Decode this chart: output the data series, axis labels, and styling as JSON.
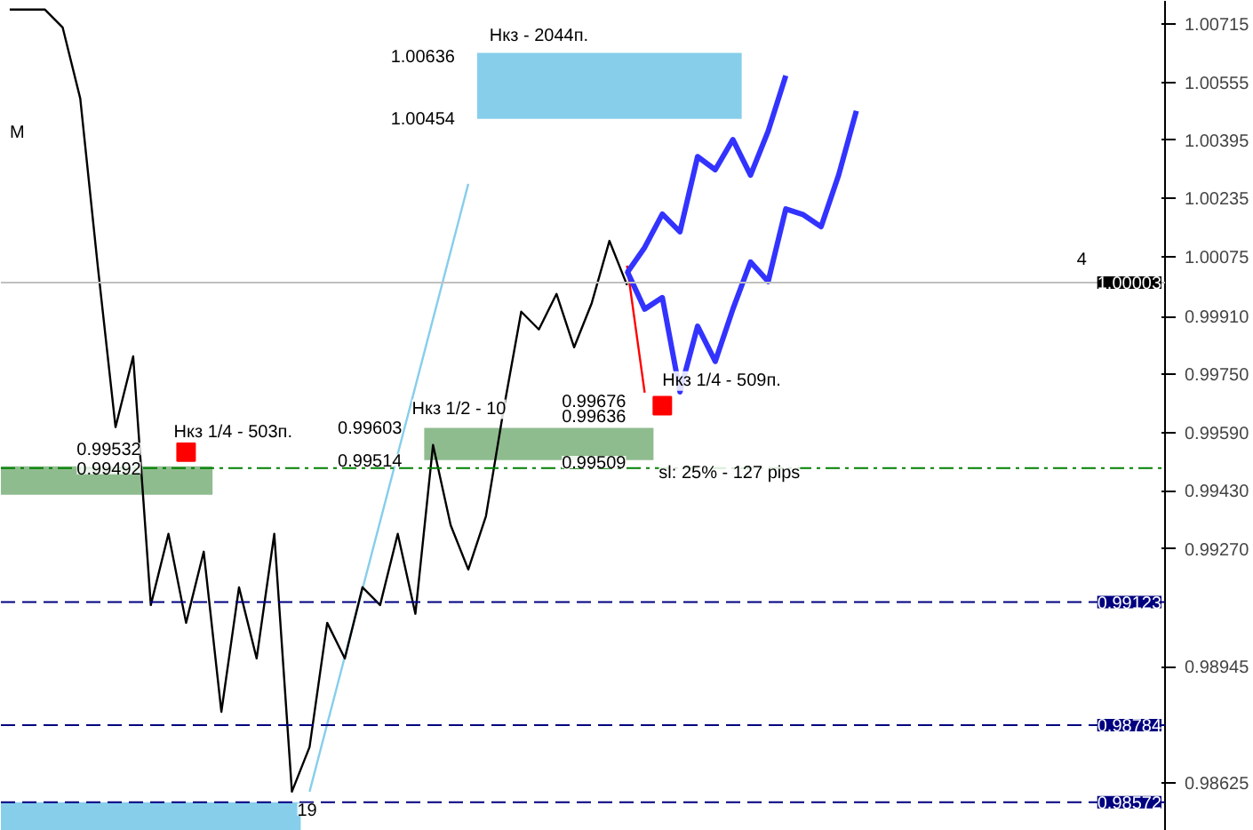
{
  "chart_data": {
    "type": "line",
    "ylim": [
      0.98493,
      1.00779
    ],
    "categories": [
      null,
      null,
      null,
      null,
      null,
      null,
      null,
      null,
      null,
      null,
      null,
      null,
      null,
      null,
      null,
      null,
      null,
      null,
      null,
      null,
      null,
      null,
      null,
      null,
      null,
      null,
      null,
      null,
      null,
      null,
      null,
      null,
      null,
      null,
      null,
      null,
      null,
      null,
      null,
      null,
      null,
      null,
      null,
      null,
      null,
      null,
      null,
      null,
      null,
      null,
      null,
      null,
      null,
      null,
      null,
      null,
      null,
      null,
      null,
      null,
      null,
      null,
      null,
      null,
      null,
      null
    ],
    "yticks": [
      1.00715,
      1.00555,
      1.00395,
      1.00235,
      1.00075,
      {
        "value": 0.9991,
        "label": "0.99910"
      },
      {
        "value": 0.9975,
        "label": "0.99750"
      },
      {
        "value": 0.9959,
        "label": "0.99590"
      },
      {
        "value": 0.9943,
        "label": "0.99430"
      },
      {
        "value": 0.9927,
        "label": "0.99270"
      },
      0.98945,
      0.98625
    ],
    "tick_labels": "y",
    "grid": false,
    "marker": "none",
    "line_style": "solid",
    "series": [
      {
        "color": "#87ceeb",
        "values": [
          null,
          null,
          null,
          null,
          null,
          null,
          null,
          null,
          null,
          null,
          null,
          null,
          null,
          null,
          null,
          null,
          null,
          0.98601,
          0.98787,
          0.98973,
          0.99159,
          0.99345,
          0.99531,
          0.99717,
          0.99903,
          1.00089,
          1.00275,
          null,
          null,
          null,
          null,
          null,
          null,
          null,
          null,
          null,
          null,
          null,
          null,
          null,
          null,
          null,
          null,
          null,
          null,
          null,
          null,
          null,
          null,
          null,
          null,
          null,
          null,
          null,
          null,
          null,
          null,
          null,
          null,
          null,
          null,
          null,
          null,
          null,
          null,
          null
        ]
      },
      {
        "color": "#000000",
        "values": [
          1.00755,
          1.00755,
          1.00755,
          1.00706,
          1.0051,
          1.00045,
          0.99605,
          0.998,
          0.99115,
          0.99311,
          0.99066,
          0.99262,
          0.98821,
          0.99164,
          0.98968,
          0.99311,
          0.98601,
          0.98724,
          0.99066,
          0.98968,
          0.99164,
          0.99115,
          0.99311,
          0.99091,
          0.99556,
          0.99335,
          0.99213,
          0.9936,
          0.99653,
          0.99923,
          0.99874,
          0.99972,
          0.99825,
          0.99947,
          1.00118,
          0.99996,
          null,
          null,
          null,
          null,
          null,
          null,
          null,
          null,
          null,
          null,
          null,
          null,
          null,
          null,
          null,
          null,
          null,
          null,
          null,
          null,
          null,
          null,
          null,
          null,
          null,
          null,
          null,
          null,
          null,
          null
        ]
      },
      {
        "color": "#ff0000",
        "values": [
          null,
          null,
          null,
          null,
          null,
          null,
          null,
          null,
          null,
          null,
          null,
          null,
          null,
          null,
          null,
          null,
          null,
          null,
          null,
          null,
          null,
          null,
          null,
          null,
          null,
          null,
          null,
          null,
          null,
          null,
          null,
          null,
          null,
          null,
          null,
          1.0005,
          0.997,
          null,
          null,
          null,
          null,
          null,
          null,
          null,
          null,
          null,
          null,
          null,
          null,
          null,
          null,
          null,
          null,
          null,
          null,
          null,
          null,
          null,
          null,
          null,
          null,
          null,
          null,
          null,
          null,
          null
        ]
      },
      {
        "color": "#3333ff",
        "values": [
          null,
          null,
          null,
          null,
          null,
          null,
          null,
          null,
          null,
          null,
          null,
          null,
          null,
          null,
          null,
          null,
          null,
          null,
          null,
          null,
          null,
          null,
          null,
          null,
          null,
          null,
          null,
          null,
          null,
          null,
          null,
          null,
          null,
          null,
          null,
          1.0003,
          1.001,
          1.00192,
          1.00143,
          1.0035,
          1.00314,
          1.00397,
          1.00299,
          1.0042,
          1.00573,
          null,
          null,
          null,
          null,
          null,
          null,
          null,
          null,
          null,
          null,
          null,
          null,
          null,
          null,
          null,
          null,
          null,
          null,
          null,
          null,
          null
        ]
      },
      {
        "color": "#3333ff",
        "values": [
          null,
          null,
          null,
          null,
          null,
          null,
          null,
          null,
          null,
          null,
          null,
          null,
          null,
          null,
          null,
          null,
          null,
          null,
          null,
          null,
          null,
          null,
          null,
          null,
          null,
          null,
          null,
          null,
          null,
          null,
          null,
          null,
          null,
          null,
          null,
          1.00035,
          0.9993,
          0.99962,
          0.99702,
          0.99883,
          0.99786,
          0.9993,
          1.0006,
          1.00006,
          1.00206,
          1.0019,
          1.00157,
          1.003,
          1.00476,
          null,
          null,
          null,
          null,
          null,
          null,
          null,
          null,
          null,
          null,
          null,
          null,
          null,
          null,
          null,
          null,
          null
        ]
      },
      {
        "type": "scatter",
        "marker": "square",
        "color": "#ff0000",
        "values": [
          null,
          null,
          null,
          null,
          null,
          null,
          null,
          null,
          null,
          null,
          0.99536,
          null,
          null,
          null,
          null,
          null,
          null,
          null,
          null,
          null,
          null,
          null,
          null,
          null,
          null,
          null,
          null,
          null,
          null,
          null,
          null,
          null,
          null,
          null,
          null,
          null,
          null,
          0.99664,
          null,
          null,
          null,
          null,
          null,
          null,
          null,
          null,
          null,
          null,
          null,
          null,
          null,
          null,
          null,
          null,
          null,
          null,
          null,
          null,
          null,
          null,
          null,
          null,
          null,
          null,
          null,
          null
        ]
      }
    ],
    "bands": [
      {
        "axis": "y",
        "from": 0.98493,
        "to": 0.98572,
        "color": "#87ceeb"
      },
      {
        "axis": "y",
        "from": 0.99419,
        "to": 0.99497,
        "color": "#8fbc8f"
      },
      {
        "axis": "y",
        "from": 0.99514,
        "to": 0.99603,
        "color": "#8fbc8f"
      },
      {
        "axis": "y",
        "from": 1.00454,
        "to": 1.00636,
        "color": "#87ceeb"
      }
    ],
    "ref_lines": [
      {
        "axis": "y",
        "value": 1.00003,
        "label": "1.00003",
        "color": "#c0c0c0",
        "line_style": "solid"
      },
      {
        "axis": "y",
        "value": 0.99123,
        "label": "0.99123",
        "color": "#000080",
        "line_style": "dashed"
      },
      {
        "axis": "y",
        "value": 0.98784,
        "label": "0.98784",
        "color": "#000080",
        "line_style": "dashed"
      },
      {
        "axis": "y",
        "value": 0.98572,
        "label": "0.98572",
        "color": "#000080",
        "line_style": "dashed"
      },
      {
        "axis": "y",
        "value": 0.99492,
        "color": "#008000",
        "line_style": "dashdot"
      }
    ],
    "annotations": [
      "Нкз - 2044п.",
      "1.00636",
      "1.00454",
      "Нкз 1/4 - 503п.",
      "0.99532",
      {
        "text": "0.99492",
        "y": 0.99492
      },
      "0.99603",
      {
        "text": "0.99514",
        "y": 0.99514
      },
      "Нкз 1/2 - 10",
      "0.99676",
      "0.99636",
      {
        "text": "0.99509",
        "y": 0.99509
      },
      "Нкз 1/4 - 509п.",
      {
        "text": "sl: 25% - 127 pips",
        "y": 0.99478
      },
      "M",
      "4",
      "19"
    ]
  }
}
